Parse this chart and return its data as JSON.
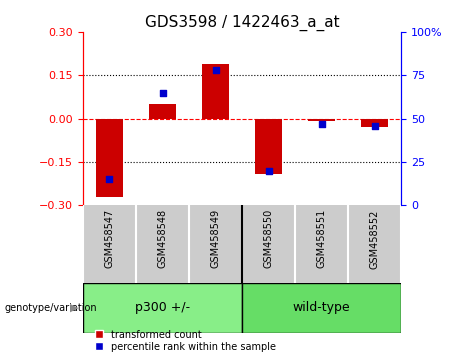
{
  "title": "GDS3598 / 1422463_a_at",
  "samples": [
    "GSM458547",
    "GSM458548",
    "GSM458549",
    "GSM458550",
    "GSM458551",
    "GSM458552"
  ],
  "transformed_count": [
    -0.27,
    0.05,
    0.19,
    -0.19,
    -0.01,
    -0.03
  ],
  "percentile_rank": [
    15,
    65,
    78,
    20,
    47,
    46
  ],
  "ylim_left": [
    -0.3,
    0.3
  ],
  "ylim_right": [
    0,
    100
  ],
  "yticks_left": [
    -0.3,
    -0.15,
    0,
    0.15,
    0.3
  ],
  "yticks_right": [
    0,
    25,
    50,
    75,
    100
  ],
  "bar_color": "#cc0000",
  "scatter_color": "#0000cc",
  "group1_label": "p300 +/-",
  "group2_label": "wild-type",
  "group1_color": "#88ee88",
  "group2_color": "#66dd66",
  "genotype_label": "genotype/variation",
  "legend1": "transformed count",
  "legend2": "percentile rank within the sample",
  "group1_samples": [
    0,
    1,
    2
  ],
  "group2_samples": [
    3,
    4,
    5
  ],
  "title_fontsize": 11,
  "tick_fontsize": 8,
  "label_fontsize": 7,
  "bar_width": 0.5,
  "xlim": [
    -0.5,
    5.5
  ]
}
